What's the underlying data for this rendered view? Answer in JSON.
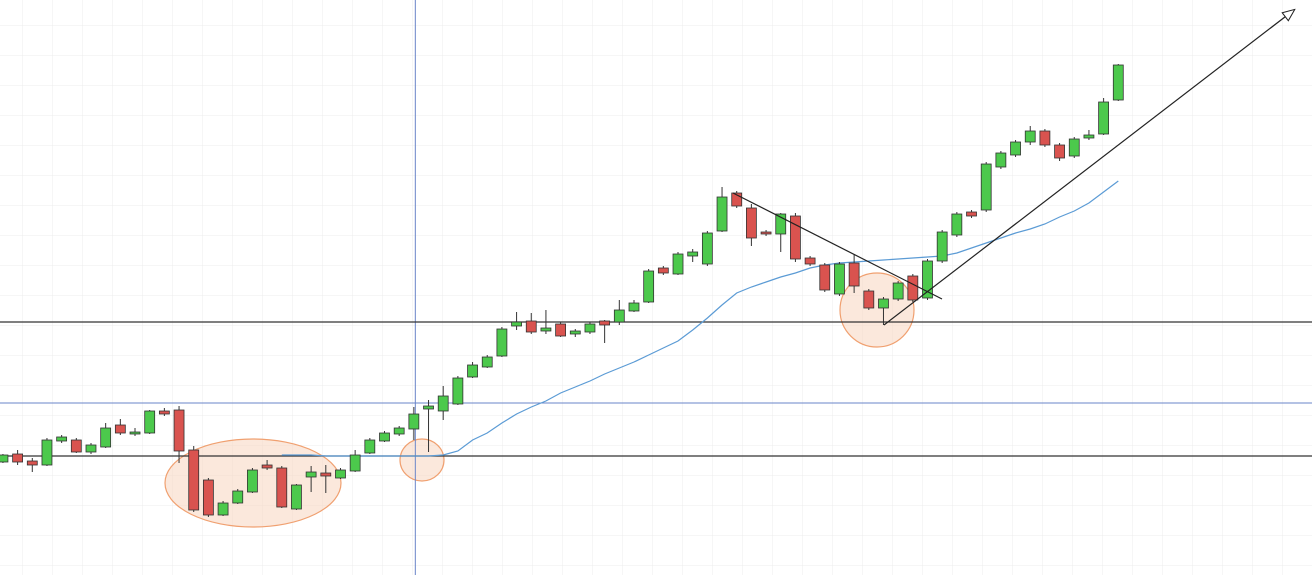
{
  "chart_data": {
    "type": "candlestick",
    "xlim": [
      -0.2,
      89.2
    ],
    "ylim": [
      0,
      575
    ],
    "up_color": "#4cc94c",
    "down_color": "#d9534f",
    "open": [
      113,
      121,
      114,
      110,
      134,
      135,
      123,
      128,
      150,
      141,
      142,
      164,
      165,
      125,
      95,
      60,
      72,
      83,
      110,
      107,
      66,
      98,
      102,
      97,
      104,
      122,
      134,
      141,
      146,
      166,
      164,
      171,
      198,
      208,
      219,
      249,
      254,
      244,
      251,
      241,
      243,
      254,
      253,
      264,
      273,
      307,
      301,
      319,
      311,
      344,
      382,
      367,
      343,
      341,
      359,
      317,
      310,
      281,
      312,
      284,
      267,
      276,
      299,
      277,
      314,
      340,
      363,
      365,
      408,
      420,
      433,
      444,
      430,
      419,
      437,
      441,
      475
    ],
    "high": [
      121,
      125,
      117,
      137,
      140,
      137,
      132,
      152,
      156,
      147,
      165,
      167,
      169,
      129,
      97,
      74,
      86,
      107,
      115,
      109,
      91,
      109,
      110,
      107,
      125,
      137,
      144,
      149,
      168,
      175,
      189,
      199,
      213,
      220,
      248,
      263,
      262,
      265,
      253,
      246,
      253,
      255,
      275,
      275,
      306,
      309,
      323,
      326,
      344,
      388,
      384,
      371,
      345,
      362,
      362,
      319,
      312,
      313,
      321,
      286,
      278,
      294,
      301,
      316,
      345,
      363,
      365,
      413,
      424,
      435,
      449,
      446,
      432,
      438,
      445,
      477,
      511
    ],
    "low": [
      112,
      110,
      103,
      109,
      132,
      122,
      121,
      127,
      140,
      139,
      141,
      159,
      112,
      63,
      58,
      59,
      71,
      82,
      105,
      67,
      65,
      83,
      82,
      96,
      103,
      121,
      133,
      139,
      135,
      123,
      155,
      170,
      197,
      207,
      218,
      245,
      241,
      241,
      238,
      238,
      241,
      232,
      250,
      263,
      272,
      300,
      300,
      313,
      309,
      343,
      367,
      329,
      339,
      323,
      313,
      309,
      283,
      279,
      282,
      265,
      250,
      274,
      273,
      275,
      312,
      338,
      357,
      363,
      406,
      418,
      430,
      428,
      414,
      417,
      435,
      440,
      474
    ],
    "close": [
      120,
      113,
      110,
      135,
      138,
      123,
      130,
      147,
      142,
      143,
      164,
      161,
      124,
      65,
      60,
      72,
      84,
      105,
      107,
      68,
      90,
      103,
      99,
      105,
      120,
      135,
      142,
      147,
      161,
      169,
      179,
      197,
      210,
      218,
      246,
      253,
      243,
      247,
      239,
      244,
      251,
      250,
      265,
      272,
      304,
      302,
      321,
      323,
      342,
      378,
      369,
      337,
      341,
      361,
      316,
      311,
      285,
      311,
      289,
      267,
      276,
      292,
      275,
      314,
      343,
      361,
      359,
      411,
      422,
      433,
      444,
      430,
      417,
      436,
      440,
      473,
      510
    ],
    "moving_average": {
      "color": "#5b9bd5",
      "values": [
        null,
        null,
        null,
        null,
        null,
        null,
        null,
        null,
        null,
        null,
        null,
        null,
        null,
        null,
        null,
        null,
        null,
        null,
        null,
        120,
        120,
        120,
        119,
        119,
        119,
        119,
        119,
        119,
        119,
        119,
        120,
        124,
        135,
        142,
        152,
        161,
        168,
        174,
        182,
        188,
        194,
        201,
        207,
        213,
        220,
        227,
        234,
        245,
        257,
        270,
        282,
        288,
        293,
        298,
        302,
        307,
        310,
        312,
        313,
        314,
        315,
        316,
        317,
        318,
        319,
        322,
        327,
        332,
        337,
        342,
        346,
        351,
        358,
        364,
        372,
        383,
        394
      ]
    },
    "levels": {
      "color": "#333333",
      "values": [
        253,
        119
      ]
    },
    "crosshair": {
      "color": "#6a85c9",
      "x": 28.1,
      "y": 172
    }
  }
}
